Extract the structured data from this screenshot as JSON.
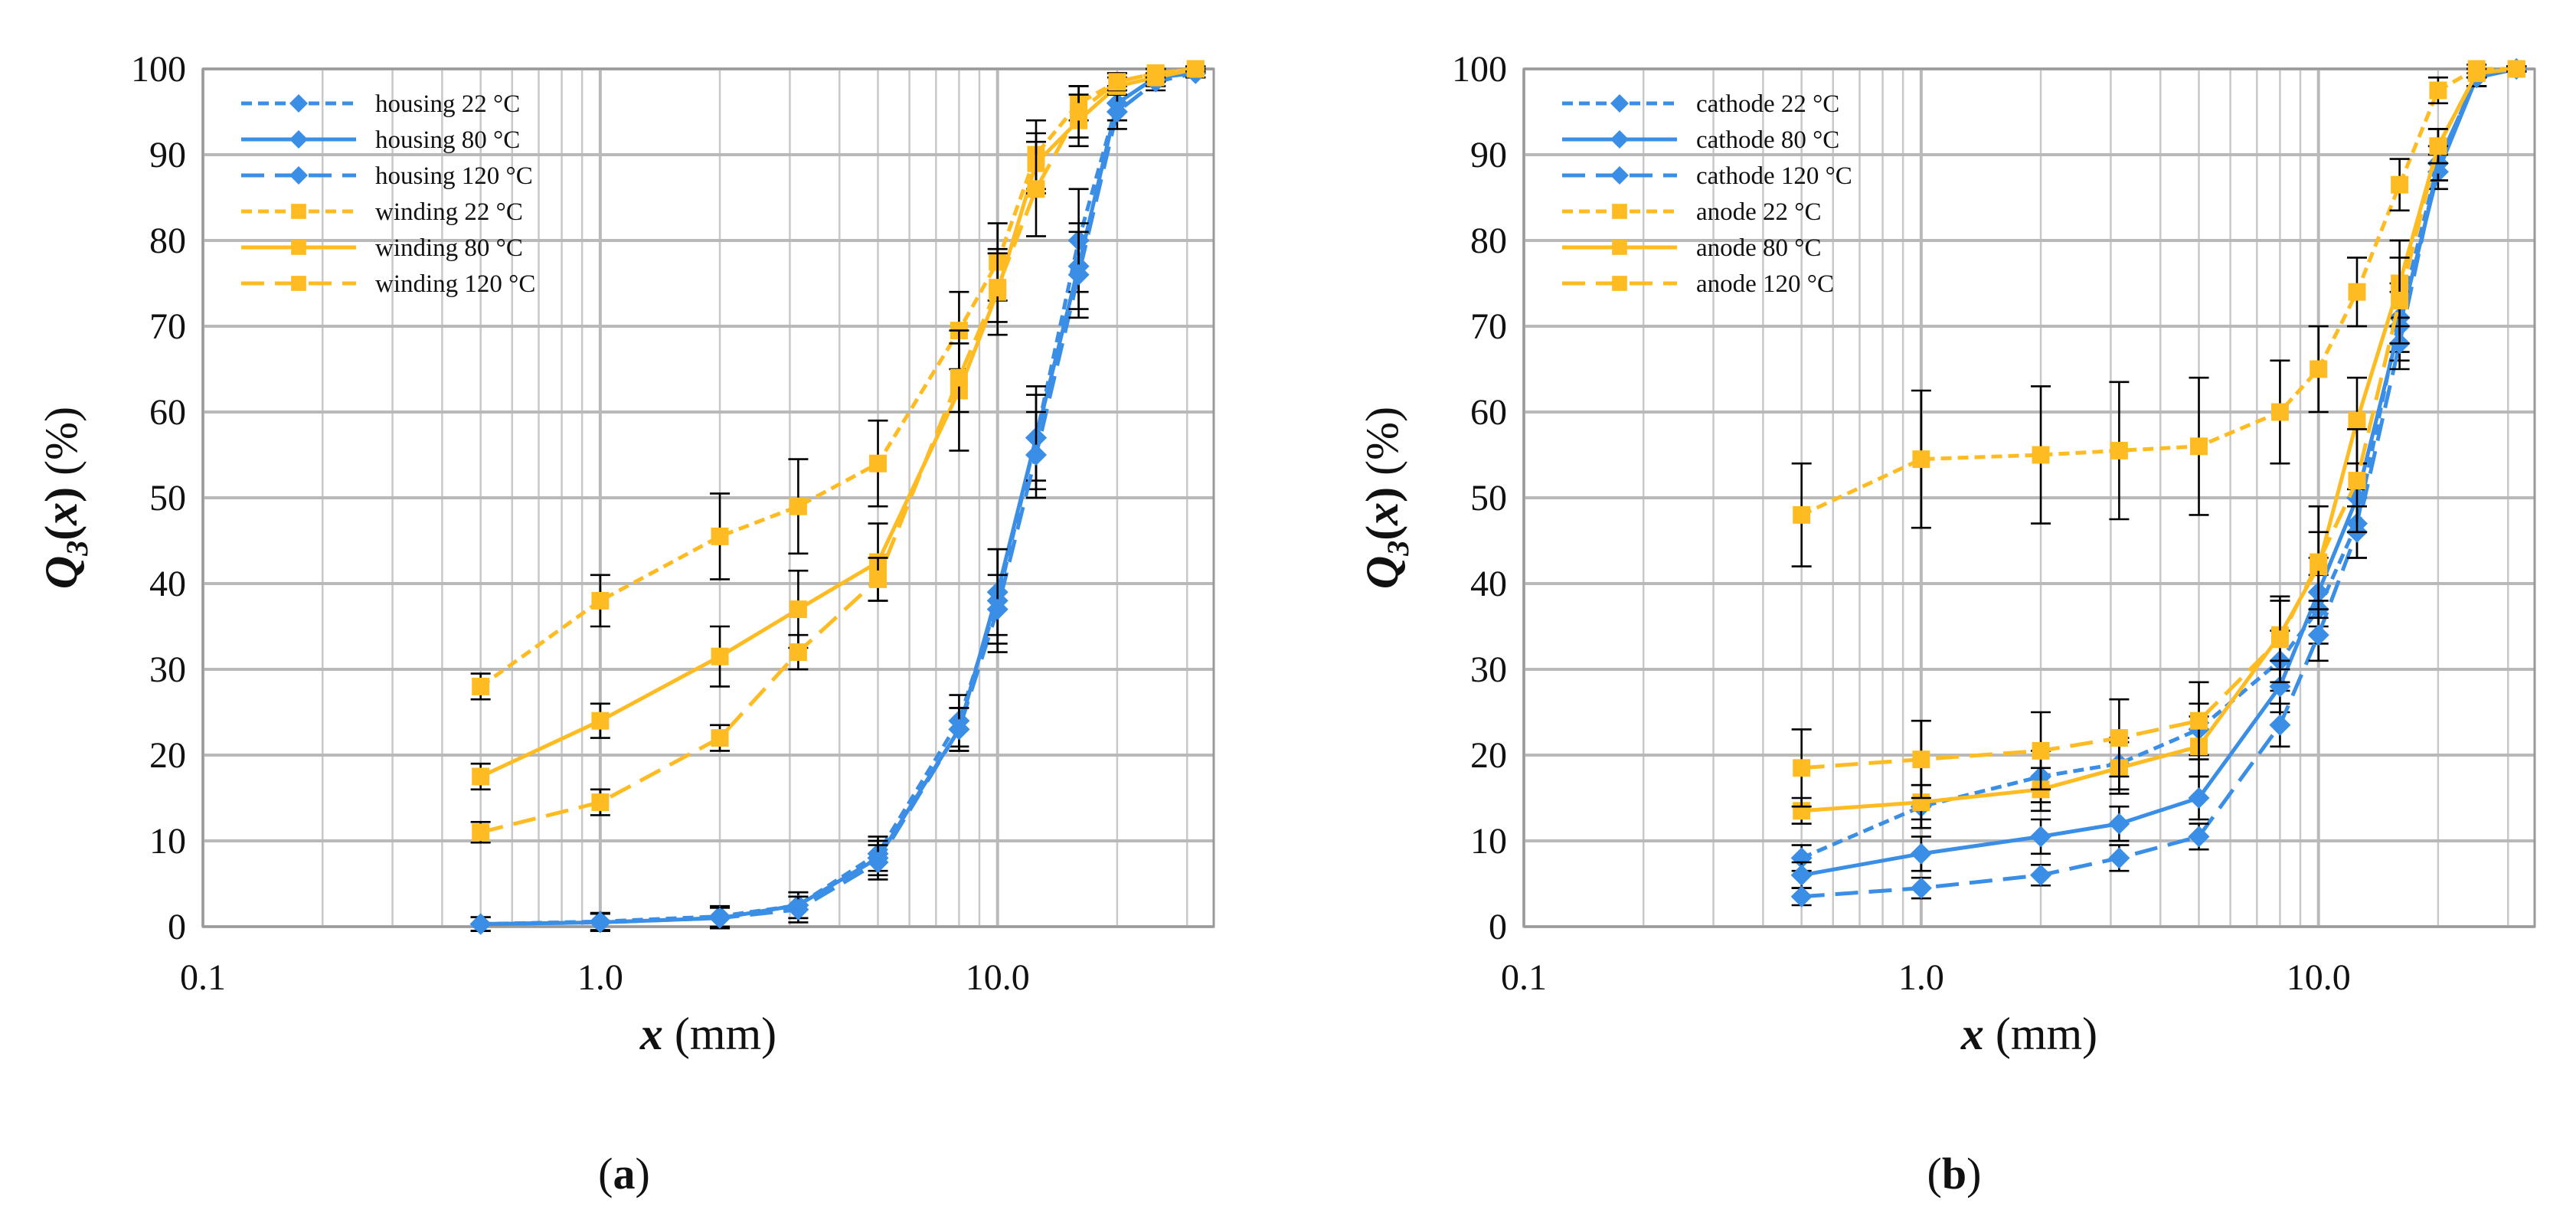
{
  "chart_data": [
    {
      "type": "line",
      "panel_label": "(a)",
      "panel_letter": "a",
      "xscale": "log",
      "xlim": [
        0.1,
        35
      ],
      "ylim": [
        0,
        100
      ],
      "xticks": [
        "0.1",
        "1.0",
        "10.0"
      ],
      "yticks": [
        "0",
        "10",
        "20",
        "30",
        "40",
        "50",
        "60",
        "70",
        "80",
        "90",
        "100"
      ],
      "xlabel": {
        "var": "x",
        "unit": "(mm)"
      },
      "ylabel": {
        "q": "Q",
        "sub": "3",
        "open": "(",
        "var": "x",
        "close": ")",
        "unit": "(%)"
      },
      "legend_position": "top-left",
      "x": [
        0.5,
        1.0,
        2.0,
        3.15,
        5.0,
        8.0,
        10.0,
        12.5,
        16.0,
        20.0,
        25.0,
        31.5
      ],
      "series": [
        {
          "name": "housing 22 °C",
          "color": "#3a8ee6",
          "dash": "short",
          "marker": "diamond",
          "values": [
            0.3,
            0.6,
            1.2,
            2.5,
            8.5,
            24,
            38,
            57,
            80,
            96,
            99,
            99.5
          ],
          "errors": [
            0.8,
            1.0,
            1.2,
            1.5,
            2,
            3,
            6,
            6,
            6,
            2,
            1,
            0.5
          ]
        },
        {
          "name": "housing 80 °C",
          "color": "#3a8ee6",
          "dash": "solid",
          "marker": "diamond",
          "values": [
            0.3,
            0.5,
            1.0,
            2.5,
            8,
            23,
            39,
            57,
            77,
            96,
            99,
            99.5
          ],
          "errors": [
            0.8,
            1.0,
            1.2,
            1.5,
            2,
            2.5,
            5,
            5,
            5,
            2,
            1,
            0.5
          ]
        },
        {
          "name": "housing 120 °C",
          "color": "#3a8ee6",
          "dash": "long",
          "marker": "diamond",
          "values": [
            0.3,
            0.5,
            1.0,
            2.0,
            7.5,
            23,
            37,
            55,
            76,
            95,
            98.5,
            99.5
          ],
          "errors": [
            0.8,
            1.0,
            1.2,
            1.5,
            2,
            2.5,
            4,
            5,
            5,
            2,
            1,
            0.5
          ]
        },
        {
          "name": "winding 22 °C",
          "color": "#ffbb22",
          "dash": "short",
          "marker": "square",
          "values": [
            28,
            38,
            45.5,
            49,
            54,
            69.5,
            77.5,
            90,
            96,
            98.5,
            99.5,
            100
          ],
          "errors": [
            1.5,
            3,
            5,
            5.5,
            5,
            4.5,
            4.5,
            4,
            2,
            1,
            0.5,
            0.3
          ]
        },
        {
          "name": "winding 80 °C",
          "color": "#ffbb22",
          "dash": "solid",
          "marker": "square",
          "values": [
            17.5,
            24,
            31.5,
            37,
            42.5,
            62.5,
            74,
            89,
            94,
            98,
            99,
            100
          ],
          "errors": [
            1.5,
            2,
            3.5,
            4.5,
            4.5,
            7,
            5,
            3.5,
            3,
            1,
            0.5,
            0.3
          ]
        },
        {
          "name": "winding 120 °C",
          "color": "#ffbb22",
          "dash": "long",
          "marker": "square",
          "values": [
            11,
            14.5,
            22,
            32,
            40.5,
            64,
            74.5,
            86,
            95,
            98.5,
            99.5,
            100
          ],
          "errors": [
            1.2,
            1.5,
            1.5,
            2,
            2.5,
            4,
            4,
            5.5,
            3,
            1,
            0.5,
            0.3
          ]
        }
      ]
    },
    {
      "type": "line",
      "panel_label": "(b)",
      "panel_letter": "b",
      "xscale": "log",
      "xlim": [
        0.1,
        35
      ],
      "ylim": [
        0,
        100
      ],
      "xticks": [
        "0.1",
        "1.0",
        "10.0"
      ],
      "yticks": [
        "0",
        "10",
        "20",
        "30",
        "40",
        "50",
        "60",
        "70",
        "80",
        "90",
        "100"
      ],
      "xlabel": {
        "var": "x",
        "unit": "(mm)"
      },
      "ylabel": {
        "q": "Q",
        "sub": "3",
        "open": "(",
        "var": "x",
        "close": ")",
        "unit": "(%)"
      },
      "legend_position": "top-left",
      "x": [
        0.5,
        1.0,
        2.0,
        3.15,
        5.0,
        8.0,
        10.0,
        12.5,
        16.0,
        20.0,
        25.0,
        31.5
      ],
      "series": [
        {
          "name": "cathode 22 °C",
          "color": "#3a8ee6",
          "dash": "short",
          "marker": "diamond",
          "values": [
            8,
            14,
            17.5,
            19,
            23,
            31,
            37,
            47,
            71,
            89,
            99,
            100
          ],
          "errors": [
            1.5,
            2.5,
            3,
            3,
            3,
            3.5,
            4,
            4,
            4,
            2,
            1,
            0.3
          ]
        },
        {
          "name": "cathode 80 °C",
          "color": "#3a8ee6",
          "dash": "solid",
          "marker": "diamond",
          "values": [
            6,
            8.5,
            10.5,
            12,
            15,
            28,
            39,
            50,
            70,
            88,
            99,
            100
          ],
          "errors": [
            1.5,
            2,
            2,
            2,
            2.5,
            3,
            4,
            4,
            4,
            2,
            1,
            0.3
          ]
        },
        {
          "name": "cathode 120 °C",
          "color": "#3a8ee6",
          "dash": "long",
          "marker": "diamond",
          "values": [
            3.5,
            4.5,
            6,
            8,
            10.5,
            23.5,
            34,
            46,
            68,
            89,
            99,
            100
          ],
          "errors": [
            1,
            1.2,
            1.2,
            1.5,
            1.5,
            2.5,
            3,
            3,
            3,
            2,
            1,
            0.3
          ]
        },
        {
          "name": "anode 22 °C",
          "color": "#ffbb22",
          "dash": "short",
          "marker": "square",
          "values": [
            48,
            54.5,
            55,
            55.5,
            56,
            60,
            65,
            74,
            86.5,
            97.5,
            100,
            100
          ],
          "errors": [
            6,
            8,
            8,
            8,
            8,
            6,
            5,
            4,
            3,
            1.5,
            0.5,
            0.3
          ]
        },
        {
          "name": "anode 80 °C",
          "color": "#ffbb22",
          "dash": "solid",
          "marker": "square",
          "values": [
            13.5,
            14.5,
            16,
            18.5,
            21,
            34,
            42,
            59,
            75,
            91,
            99.5,
            100
          ],
          "errors": [
            1.5,
            2,
            2.5,
            3,
            3.5,
            4,
            4,
            5,
            5,
            2,
            0.5,
            0.3
          ]
        },
        {
          "name": "anode 120 °C",
          "color": "#ffbb22",
          "dash": "long",
          "marker": "square",
          "values": [
            18.5,
            19.5,
            20.5,
            22,
            24,
            33.5,
            42.5,
            52,
            73,
            91,
            99.5,
            100
          ],
          "errors": [
            4.5,
            4.5,
            4.5,
            4.5,
            4.5,
            5,
            6.5,
            6,
            5,
            2,
            0.5,
            0.3
          ]
        }
      ]
    }
  ]
}
